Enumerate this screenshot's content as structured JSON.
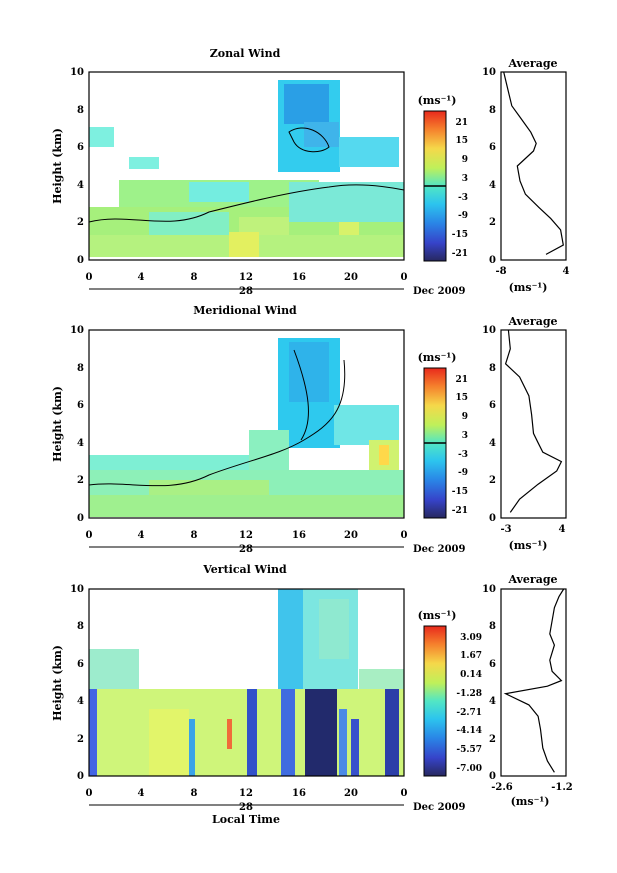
{
  "chart_data": [
    {
      "type": "heatmap",
      "title": "Zonal Wind",
      "ylabel": "Height (km)",
      "unit_label": "(ms⁻¹)",
      "x_ticks": [
        "0",
        "4",
        "8",
        "12",
        "16",
        "20",
        "0"
      ],
      "y_ticks": [
        "0",
        "2",
        "4",
        "6",
        "8",
        "10"
      ],
      "xlim": [
        0,
        24
      ],
      "ylim": [
        0,
        10
      ],
      "day_label": "28",
      "date_label": "Dec 2009",
      "colorbar_ticks": [
        "21",
        "15",
        "9",
        "3",
        "-3",
        "-9",
        "-15",
        "-21"
      ],
      "colorbar_range": [
        -24,
        24
      ],
      "average": {
        "title": "Average",
        "xlim": [
          -8,
          4
        ],
        "x_ticks": [
          "-8",
          "4"
        ],
        "xlabel": "(ms⁻¹)",
        "profile": [
          [
            0.3,
            0.3
          ],
          [
            3.5,
            0.8
          ],
          [
            3,
            1.6
          ],
          [
            1.2,
            2.2
          ],
          [
            -1,
            2.8
          ],
          [
            -3.5,
            3.5
          ],
          [
            -4.5,
            4.2
          ],
          [
            -5,
            5
          ],
          [
            -3.5,
            5.4
          ],
          [
            -2,
            5.8
          ],
          [
            -1.5,
            6.2
          ],
          [
            -2.5,
            6.8
          ],
          [
            -4.5,
            7.6
          ],
          [
            -6,
            8.2
          ],
          [
            -6.5,
            8.8
          ],
          [
            -7,
            9.4
          ],
          [
            -7.5,
            10
          ]
        ]
      }
    },
    {
      "type": "heatmap",
      "title": "Meridional Wind",
      "ylabel": "Height (km)",
      "unit_label": "(ms⁻¹)",
      "x_ticks": [
        "0",
        "4",
        "8",
        "12",
        "16",
        "20",
        "0"
      ],
      "y_ticks": [
        "0",
        "2",
        "4",
        "6",
        "8",
        "10"
      ],
      "xlim": [
        0,
        24
      ],
      "ylim": [
        0,
        10
      ],
      "day_label": "28",
      "date_label": "Dec 2009",
      "colorbar_ticks": [
        "21",
        "15",
        "9",
        "3",
        "-3",
        "-9",
        "-15",
        "-21"
      ],
      "colorbar_range": [
        -24,
        24
      ],
      "average": {
        "title": "Average",
        "xlim": [
          -3,
          4
        ],
        "x_ticks": [
          "-3",
          "4"
        ],
        "xlabel": "(ms⁻¹)",
        "profile": [
          [
            -2,
            0.3
          ],
          [
            -1,
            1
          ],
          [
            1,
            1.8
          ],
          [
            3,
            2.5
          ],
          [
            3.5,
            3
          ],
          [
            1.5,
            3.5
          ],
          [
            1,
            4
          ],
          [
            0.5,
            4.5
          ],
          [
            0.3,
            5.5
          ],
          [
            0,
            6.5
          ],
          [
            -1,
            7.5
          ],
          [
            -2.5,
            8.2
          ],
          [
            -2,
            9
          ],
          [
            -2.2,
            10
          ]
        ]
      }
    },
    {
      "type": "heatmap",
      "title": "Vertical Wind",
      "xlabel": "Local Time",
      "ylabel": "Height (km)",
      "unit_label": "(ms⁻¹)",
      "x_ticks": [
        "0",
        "4",
        "8",
        "12",
        "16",
        "20",
        "0"
      ],
      "y_ticks": [
        "0",
        "2",
        "4",
        "6",
        "8",
        "10"
      ],
      "xlim": [
        0,
        24
      ],
      "ylim": [
        0,
        10
      ],
      "day_label": "28",
      "date_label": "Dec 2009",
      "colorbar_ticks": [
        "3.09",
        "1.67",
        "0.14",
        "-1.28",
        "-2.71",
        "-4.14",
        "-5.57",
        "-7.00"
      ],
      "colorbar_range": [
        -7.71,
        3.8
      ],
      "average": {
        "title": "Average",
        "xlim": [
          -2.6,
          -1.2
        ],
        "x_ticks": [
          "-2.6",
          "-1.2"
        ],
        "xlabel": "(ms⁻¹)",
        "profile": [
          [
            -1.45,
            0.2
          ],
          [
            -1.6,
            0.8
          ],
          [
            -1.7,
            1.5
          ],
          [
            -1.75,
            2.5
          ],
          [
            -1.8,
            3.2
          ],
          [
            -2,
            3.8
          ],
          [
            -2.5,
            4.4
          ],
          [
            -1.6,
            4.8
          ],
          [
            -1.3,
            5.1
          ],
          [
            -1.5,
            5.6
          ],
          [
            -1.55,
            6.2
          ],
          [
            -1.45,
            7
          ],
          [
            -1.55,
            7.6
          ],
          [
            -1.5,
            8.3
          ],
          [
            -1.45,
            9
          ],
          [
            -1.35,
            9.6
          ],
          [
            -1.25,
            10
          ]
        ]
      }
    }
  ]
}
